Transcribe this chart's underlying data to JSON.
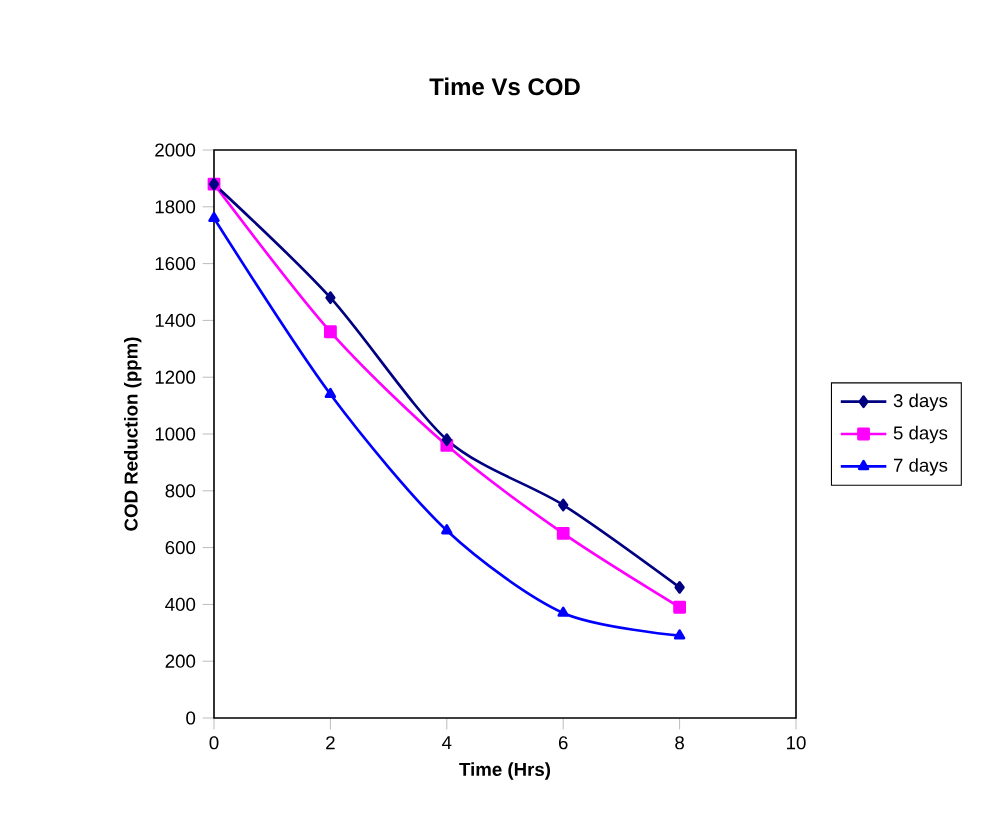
{
  "chart_data": {
    "type": "line",
    "title": "Time Vs COD",
    "xlabel": "Time (Hrs)",
    "ylabel": "COD Reduction (ppm)",
    "x": [
      0,
      2,
      4,
      6,
      8
    ],
    "series": [
      {
        "name": "3 days",
        "color": "#000080",
        "marker": "diamond",
        "values": [
          1880,
          1480,
          980,
          750,
          460
        ]
      },
      {
        "name": "5 days",
        "color": "#ff00ff",
        "marker": "square",
        "values": [
          1880,
          1360,
          960,
          650,
          390
        ]
      },
      {
        "name": "7 days",
        "color": "#0000ff",
        "marker": "triangle",
        "values": [
          1760,
          1140,
          660,
          370,
          290
        ]
      }
    ],
    "xlim": [
      0,
      10
    ],
    "xticks": [
      0,
      2,
      4,
      6,
      8,
      10
    ],
    "ylim": [
      0,
      2000
    ],
    "yticks": [
      0,
      200,
      400,
      600,
      800,
      1000,
      1200,
      1400,
      1600,
      1800,
      2000
    ],
    "grid": false,
    "legend": "right",
    "line_style": "solid"
  }
}
